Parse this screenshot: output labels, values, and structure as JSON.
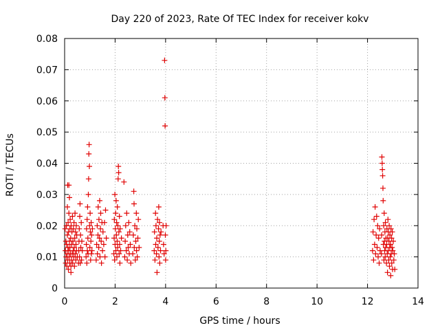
{
  "chart_data": {
    "type": "scatter",
    "title": "Day 220 of 2023, Rate Of TEC Index for receiver kokv",
    "xlabel": "GPS time / hours",
    "ylabel": "ROTI / TECUs",
    "xlim": [
      0,
      14
    ],
    "ylim": [
      0,
      0.08
    ],
    "x_ticks": [
      0,
      2,
      4,
      6,
      8,
      10,
      12,
      14
    ],
    "x_tick_labels": [
      "0",
      "2",
      "4",
      "6",
      "8",
      "10",
      "12",
      "14"
    ],
    "y_ticks": [
      0,
      0.01,
      0.02,
      0.03,
      0.04,
      0.05,
      0.06,
      0.07,
      0.08
    ],
    "y_tick_labels": [
      "0",
      "0.01",
      "0.02",
      "0.03",
      "0.04",
      "0.05",
      "0.06",
      "0.07",
      "0.08"
    ],
    "grid": true,
    "marker": "plus",
    "color": "#e00000",
    "series": [
      {
        "points": [
          [
            0.02,
            0.019
          ],
          [
            0.03,
            0.012
          ],
          [
            0.04,
            0.008
          ],
          [
            0.05,
            0.015
          ],
          [
            0.06,
            0.01
          ],
          [
            0.07,
            0.02
          ],
          [
            0.08,
            0.014
          ],
          [
            0.09,
            0.007
          ],
          [
            0.1,
            0.011
          ],
          [
            0.11,
            0.017
          ],
          [
            0.11,
            0.026
          ],
          [
            0.12,
            0.009
          ],
          [
            0.12,
            0.033
          ],
          [
            0.13,
            0.013
          ],
          [
            0.14,
            0.021
          ],
          [
            0.15,
            0.006
          ],
          [
            0.15,
            0.018
          ],
          [
            0.16,
            0.012
          ],
          [
            0.17,
            0.024
          ],
          [
            0.17,
            0.033
          ],
          [
            0.18,
            0.01
          ],
          [
            0.19,
            0.015
          ],
          [
            0.19,
            0.029
          ],
          [
            0.2,
            0.008
          ],
          [
            0.21,
            0.019
          ],
          [
            0.21,
            0.013
          ],
          [
            0.22,
            0.022
          ],
          [
            0.23,
            0.011
          ],
          [
            0.24,
            0.016
          ],
          [
            0.25,
            0.007
          ],
          [
            0.25,
            0.005
          ],
          [
            0.26,
            0.02
          ],
          [
            0.27,
            0.009
          ],
          [
            0.28,
            0.014
          ],
          [
            0.29,
            0.018
          ],
          [
            0.3,
            0.011
          ],
          [
            0.31,
            0.023
          ],
          [
            0.32,
            0.008
          ],
          [
            0.33,
            0.015
          ],
          [
            0.34,
            0.012
          ],
          [
            0.35,
            0.019
          ],
          [
            0.36,
            0.01
          ],
          [
            0.37,
            0.021
          ],
          [
            0.38,
            0.013
          ],
          [
            0.39,
            0.007
          ],
          [
            0.4,
            0.016
          ],
          [
            0.41,
            0.024
          ],
          [
            0.42,
            0.011
          ],
          [
            0.43,
            0.018
          ],
          [
            0.44,
            0.009
          ],
          [
            0.45,
            0.014
          ],
          [
            0.46,
            0.02
          ],
          [
            0.47,
            0.012
          ],
          [
            0.48,
            0.017
          ],
          [
            0.5,
            0.01
          ],
          [
            0.55,
            0.008
          ],
          [
            0.56,
            0.012
          ],
          [
            0.57,
            0.015
          ],
          [
            0.58,
            0.019
          ],
          [
            0.59,
            0.01
          ],
          [
            0.6,
            0.023
          ],
          [
            0.61,
            0.027
          ],
          [
            0.62,
            0.008
          ],
          [
            0.63,
            0.017
          ],
          [
            0.64,
            0.013
          ],
          [
            0.66,
            0.021
          ],
          [
            0.67,
            0.009
          ],
          [
            0.68,
            0.015
          ],
          [
            0.7,
            0.012
          ],
          [
            0.85,
            0.01
          ],
          [
            0.86,
            0.014
          ],
          [
            0.87,
            0.019
          ],
          [
            0.88,
            0.008
          ],
          [
            0.89,
            0.022
          ],
          [
            0.9,
            0.012
          ],
          [
            0.91,
            0.026
          ],
          [
            0.92,
            0.016
          ],
          [
            0.93,
            0.011
          ],
          [
            0.94,
            0.03
          ],
          [
            0.95,
            0.035
          ],
          [
            0.96,
            0.043
          ],
          [
            0.97,
            0.046
          ],
          [
            0.98,
            0.039
          ],
          [
            0.99,
            0.02
          ],
          [
            1.0,
            0.013
          ],
          [
            1.01,
            0.024
          ],
          [
            1.02,
            0.018
          ],
          [
            1.03,
            0.009
          ],
          [
            1.04,
            0.015
          ],
          [
            1.05,
            0.021
          ],
          [
            1.06,
            0.011
          ],
          [
            1.07,
            0.017
          ],
          [
            1.08,
            0.012
          ],
          [
            1.1,
            0.019
          ],
          [
            1.25,
            0.009
          ],
          [
            1.27,
            0.014
          ],
          [
            1.29,
            0.02
          ],
          [
            1.3,
            0.011
          ],
          [
            1.32,
            0.017
          ],
          [
            1.33,
            0.026
          ],
          [
            1.35,
            0.013
          ],
          [
            1.36,
            0.022
          ],
          [
            1.38,
            0.016
          ],
          [
            1.39,
            0.028
          ],
          [
            1.4,
            0.01
          ],
          [
            1.42,
            0.019
          ],
          [
            1.43,
            0.024
          ],
          [
            1.45,
            0.015
          ],
          [
            1.46,
            0.008
          ],
          [
            1.48,
            0.021
          ],
          [
            1.5,
            0.012
          ],
          [
            1.52,
            0.018
          ],
          [
            1.55,
            0.014
          ],
          [
            1.58,
            0.021
          ],
          [
            1.6,
            0.01
          ],
          [
            1.62,
            0.025
          ],
          [
            1.65,
            0.016
          ],
          [
            1.95,
            0.011
          ],
          [
            1.96,
            0.016
          ],
          [
            1.97,
            0.022
          ],
          [
            1.98,
            0.009
          ],
          [
            1.99,
            0.03
          ],
          [
            2.0,
            0.014
          ],
          [
            2.01,
            0.019
          ],
          [
            2.02,
            0.024
          ],
          [
            2.03,
            0.012
          ],
          [
            2.04,
            0.028
          ],
          [
            2.05,
            0.017
          ],
          [
            2.06,
            0.021
          ],
          [
            2.07,
            0.01
          ],
          [
            2.08,
            0.015
          ],
          [
            2.09,
            0.026
          ],
          [
            2.1,
            0.013
          ],
          [
            2.11,
            0.02
          ],
          [
            2.12,
            0.035
          ],
          [
            2.13,
            0.039
          ],
          [
            2.14,
            0.037
          ],
          [
            2.15,
            0.018
          ],
          [
            2.16,
            0.011
          ],
          [
            2.17,
            0.023
          ],
          [
            2.18,
            0.014
          ],
          [
            2.19,
            0.008
          ],
          [
            2.2,
            0.019
          ],
          [
            2.22,
            0.012
          ],
          [
            2.25,
            0.016
          ],
          [
            2.35,
            0.034
          ],
          [
            2.38,
            0.01
          ],
          [
            2.4,
            0.015
          ],
          [
            2.42,
            0.02
          ],
          [
            2.44,
            0.012
          ],
          [
            2.46,
            0.024
          ],
          [
            2.48,
            0.009
          ],
          [
            2.5,
            0.017
          ],
          [
            2.52,
            0.013
          ],
          [
            2.54,
            0.021
          ],
          [
            2.56,
            0.011
          ],
          [
            2.58,
            0.018
          ],
          [
            2.6,
            0.014
          ],
          [
            2.62,
            0.008
          ],
          [
            2.7,
            0.011
          ],
          [
            2.72,
            0.017
          ],
          [
            2.74,
            0.031
          ],
          [
            2.75,
            0.027
          ],
          [
            2.76,
            0.013
          ],
          [
            2.78,
            0.02
          ],
          [
            2.8,
            0.009
          ],
          [
            2.82,
            0.015
          ],
          [
            2.84,
            0.024
          ],
          [
            2.85,
            0.012
          ],
          [
            2.86,
            0.019
          ],
          [
            2.88,
            0.01
          ],
          [
            2.9,
            0.016
          ],
          [
            2.92,
            0.022
          ],
          [
            2.95,
            0.013
          ],
          [
            3.55,
            0.012
          ],
          [
            3.56,
            0.018
          ],
          [
            3.58,
            0.009
          ],
          [
            3.6,
            0.024
          ],
          [
            3.61,
            0.014
          ],
          [
            3.62,
            0.02
          ],
          [
            3.64,
            0.011
          ],
          [
            3.65,
            0.016
          ],
          [
            3.66,
            0.005
          ],
          [
            3.68,
            0.022
          ],
          [
            3.7,
            0.013
          ],
          [
            3.72,
            0.019
          ],
          [
            3.73,
            0.026
          ],
          [
            3.74,
            0.01
          ],
          [
            3.75,
            0.015
          ],
          [
            3.76,
            0.021
          ],
          [
            3.77,
            0.008
          ],
          [
            3.78,
            0.017
          ],
          [
            3.8,
            0.012
          ],
          [
            3.82,
            0.018
          ],
          [
            3.9,
            0.02
          ],
          [
            3.92,
            0.014
          ],
          [
            3.94,
            0.011
          ],
          [
            3.96,
            0.073
          ],
          [
            3.97,
            0.061
          ],
          [
            3.98,
            0.052
          ],
          [
            3.99,
            0.017
          ],
          [
            4.0,
            0.009
          ],
          [
            4.01,
            0.012
          ],
          [
            4.02,
            0.02
          ],
          [
            12.2,
            0.012
          ],
          [
            12.22,
            0.018
          ],
          [
            12.24,
            0.009
          ],
          [
            12.26,
            0.022
          ],
          [
            12.28,
            0.014
          ],
          [
            12.3,
            0.026
          ],
          [
            12.32,
            0.011
          ],
          [
            12.34,
            0.017
          ],
          [
            12.36,
            0.023
          ],
          [
            12.38,
            0.013
          ],
          [
            12.4,
            0.02
          ],
          [
            12.42,
            0.01
          ],
          [
            12.44,
            0.016
          ],
          [
            12.46,
            0.008
          ],
          [
            12.48,
            0.019
          ],
          [
            12.5,
            0.012
          ],
          [
            12.55,
            0.011
          ],
          [
            12.56,
            0.017
          ],
          [
            12.57,
            0.042
          ],
          [
            12.58,
            0.04
          ],
          [
            12.59,
            0.038
          ],
          [
            12.6,
            0.036
          ],
          [
            12.61,
            0.032
          ],
          [
            12.62,
            0.028
          ],
          [
            12.63,
            0.014
          ],
          [
            12.64,
            0.02
          ],
          [
            12.65,
            0.009
          ],
          [
            12.66,
            0.024
          ],
          [
            12.67,
            0.015
          ],
          [
            12.68,
            0.012
          ],
          [
            12.69,
            0.018
          ],
          [
            12.7,
            0.01
          ],
          [
            12.71,
            0.021
          ],
          [
            12.72,
            0.013
          ],
          [
            12.73,
            0.016
          ],
          [
            12.75,
            0.008
          ],
          [
            12.76,
            0.014
          ],
          [
            12.77,
            0.019
          ],
          [
            12.78,
            0.011
          ],
          [
            12.79,
            0.005
          ],
          [
            12.8,
            0.016
          ],
          [
            12.81,
            0.022
          ],
          [
            12.82,
            0.012
          ],
          [
            12.83,
            0.018
          ],
          [
            12.84,
            0.009
          ],
          [
            12.85,
            0.015
          ],
          [
            12.86,
            0.02
          ],
          [
            12.87,
            0.007
          ],
          [
            12.88,
            0.013
          ],
          [
            12.89,
            0.017
          ],
          [
            12.9,
            0.01
          ],
          [
            12.91,
            0.014
          ],
          [
            12.92,
            0.004
          ],
          [
            12.93,
            0.019
          ],
          [
            12.94,
            0.011
          ],
          [
            12.95,
            0.016
          ],
          [
            12.96,
            0.008
          ],
          [
            12.97,
            0.013
          ],
          [
            12.98,
            0.018
          ],
          [
            12.99,
            0.006
          ],
          [
            13.0,
            0.012
          ],
          [
            13.02,
            0.015
          ],
          [
            13.04,
            0.009
          ],
          [
            13.06,
            0.011
          ],
          [
            13.08,
            0.006
          ]
        ]
      }
    ]
  }
}
